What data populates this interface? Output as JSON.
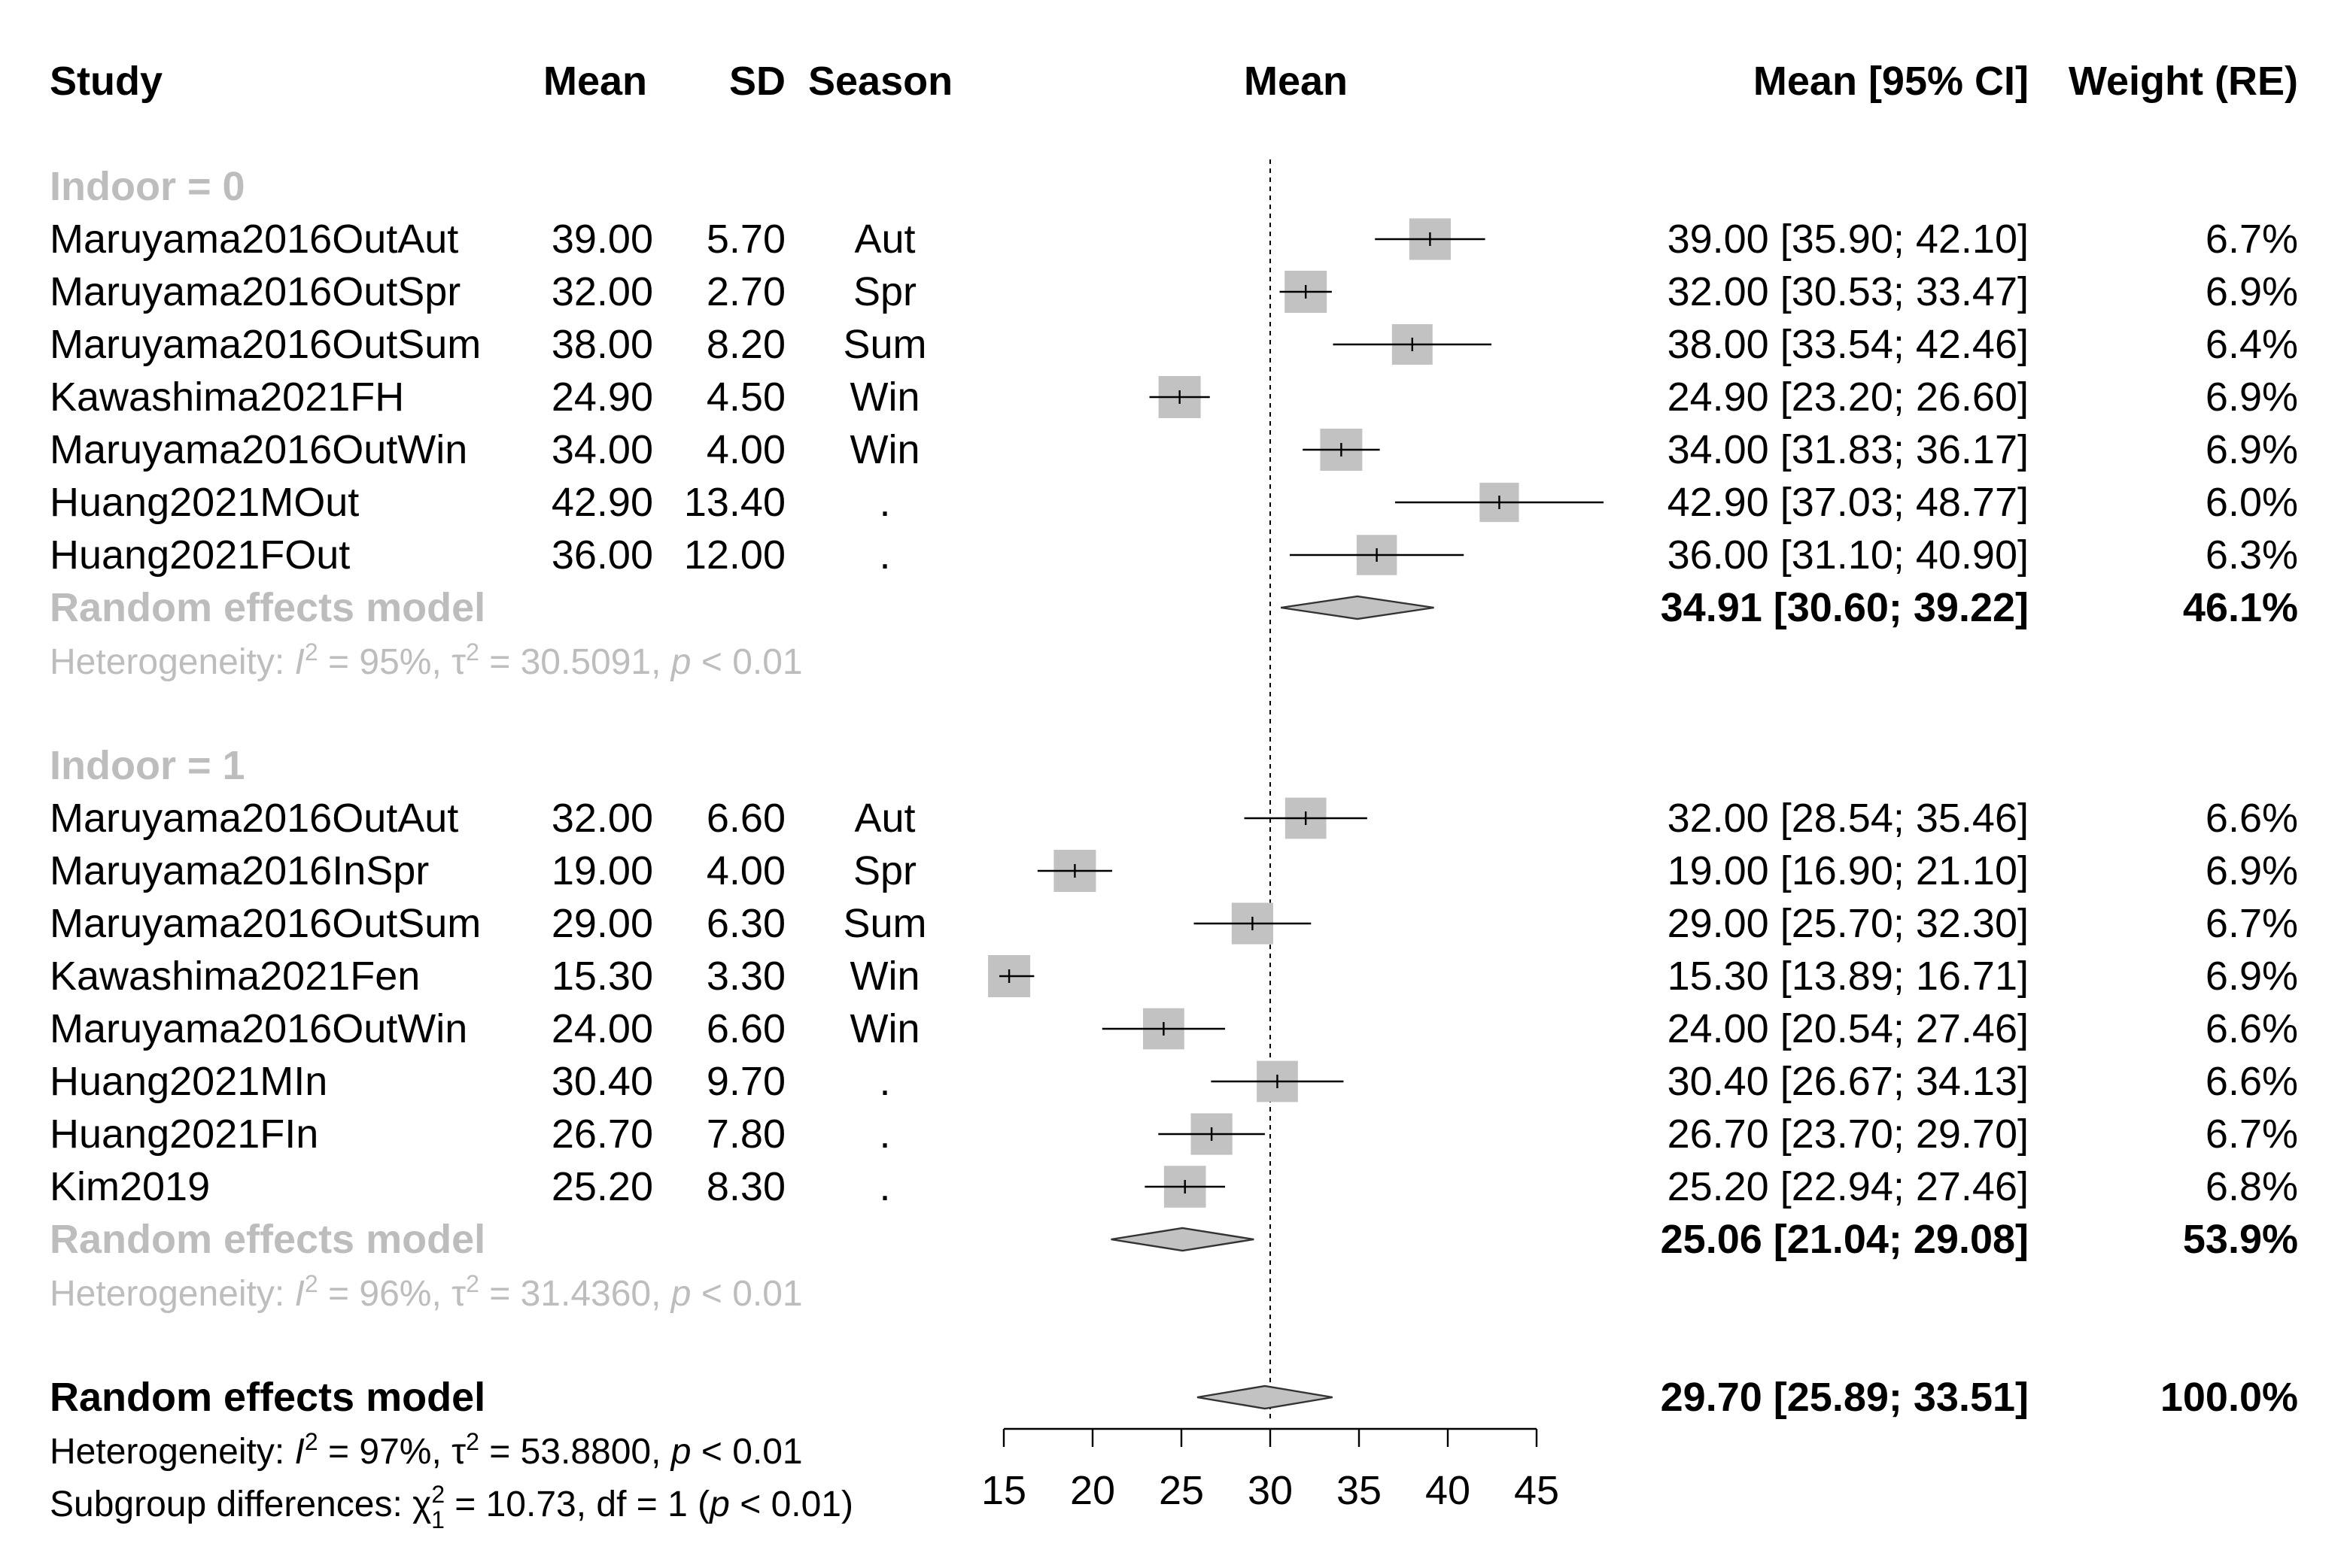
{
  "chart_data": {
    "type": "forest",
    "headers": {
      "study": "Study",
      "mean": "Mean",
      "sd": "SD",
      "season": "Season",
      "plot": "Mean",
      "ci": "Mean [95% CI]",
      "weight": "Weight (RE)"
    },
    "reference_line": 30,
    "xlim": [
      15,
      45
    ],
    "xticks": [
      "15",
      "20",
      "25",
      "30",
      "35",
      "40",
      "45"
    ],
    "groups": [
      {
        "label": "Indoor = 0",
        "studies": [
          {
            "study": "Maruyama2016OutAut",
            "mean": "39.00",
            "sd": "5.70",
            "season": "Aut",
            "ci_text": "39.00 [35.90; 42.10]",
            "weight": "6.7%",
            "est": 39.0,
            "lower": 35.9,
            "upper": 42.1,
            "w": 6.7
          },
          {
            "study": "Maruyama2016OutSpr",
            "mean": "32.00",
            "sd": "2.70",
            "season": "Spr",
            "ci_text": "32.00 [30.53; 33.47]",
            "weight": "6.9%",
            "est": 32.0,
            "lower": 30.53,
            "upper": 33.47,
            "w": 6.9
          },
          {
            "study": "Maruyama2016OutSum",
            "mean": "38.00",
            "sd": "8.20",
            "season": "Sum",
            "ci_text": "38.00 [33.54; 42.46]",
            "weight": "6.4%",
            "est": 38.0,
            "lower": 33.54,
            "upper": 42.46,
            "w": 6.4
          },
          {
            "study": "Kawashima2021FH",
            "mean": "24.90",
            "sd": "4.50",
            "season": "Win",
            "ci_text": "24.90 [23.20; 26.60]",
            "weight": "6.9%",
            "est": 24.9,
            "lower": 23.2,
            "upper": 26.6,
            "w": 6.9
          },
          {
            "study": "Maruyama2016OutWin",
            "mean": "34.00",
            "sd": "4.00",
            "season": "Win",
            "ci_text": "34.00 [31.83; 36.17]",
            "weight": "6.9%",
            "est": 34.0,
            "lower": 31.83,
            "upper": 36.17,
            "w": 6.9
          },
          {
            "study": "Huang2021MOut",
            "mean": "42.90",
            "sd": "13.40",
            "season": ".",
            "ci_text": "42.90 [37.03; 48.77]",
            "weight": "6.0%",
            "est": 42.9,
            "lower": 37.03,
            "upper": 48.77,
            "w": 6.0
          },
          {
            "study": "Huang2021FOut",
            "mean": "36.00",
            "sd": "12.00",
            "season": ".",
            "ci_text": "36.00 [31.10; 40.90]",
            "weight": "6.3%",
            "est": 36.0,
            "lower": 31.1,
            "upper": 40.9,
            "w": 6.3
          }
        ],
        "model": {
          "label": "Random effects model",
          "ci_text": "34.91 [30.60; 39.22]",
          "weight": "46.1%",
          "est": 34.91,
          "lower": 30.6,
          "upper": 39.22
        },
        "heterogeneity": {
          "prefix": "Heterogeneity: ",
          "I2": "95%",
          "tau2": "30.5091",
          "p": "0.01"
        }
      },
      {
        "label": "Indoor = 1",
        "studies": [
          {
            "study": "Maruyama2016OutAut",
            "mean": "32.00",
            "sd": "6.60",
            "season": "Aut",
            "ci_text": "32.00 [28.54; 35.46]",
            "weight": "6.6%",
            "est": 32.0,
            "lower": 28.54,
            "upper": 35.46,
            "w": 6.6
          },
          {
            "study": "Maruyama2016InSpr",
            "mean": "19.00",
            "sd": "4.00",
            "season": "Spr",
            "ci_text": "19.00 [16.90; 21.10]",
            "weight": "6.9%",
            "est": 19.0,
            "lower": 16.9,
            "upper": 21.1,
            "w": 6.9
          },
          {
            "study": "Maruyama2016OutSum",
            "mean": "29.00",
            "sd": "6.30",
            "season": "Sum",
            "ci_text": "29.00 [25.70; 32.30]",
            "weight": "6.7%",
            "est": 29.0,
            "lower": 25.7,
            "upper": 32.3,
            "w": 6.7
          },
          {
            "study": "Kawashima2021Fen",
            "mean": "15.30",
            "sd": "3.30",
            "season": "Win",
            "ci_text": "15.30 [13.89; 16.71]",
            "weight": "6.9%",
            "est": 15.3,
            "lower": 13.89,
            "upper": 16.71,
            "w": 6.9
          },
          {
            "study": "Maruyama2016OutWin",
            "mean": "24.00",
            "sd": "6.60",
            "season": "Win",
            "ci_text": "24.00 [20.54; 27.46]",
            "weight": "6.6%",
            "est": 24.0,
            "lower": 20.54,
            "upper": 27.46,
            "w": 6.6
          },
          {
            "study": "Huang2021MIn",
            "mean": "30.40",
            "sd": "9.70",
            "season": ".",
            "ci_text": "30.40 [26.67; 34.13]",
            "weight": "6.6%",
            "est": 30.4,
            "lower": 26.67,
            "upper": 34.13,
            "w": 6.6
          },
          {
            "study": "Huang2021FIn",
            "mean": "26.70",
            "sd": "7.80",
            "season": ".",
            "ci_text": "26.70 [23.70; 29.70]",
            "weight": "6.7%",
            "est": 26.7,
            "lower": 23.7,
            "upper": 29.7,
            "w": 6.7
          },
          {
            "study": "Kim2019",
            "mean": "25.20",
            "sd": "8.30",
            "season": ".",
            "ci_text": "25.20 [22.94; 27.46]",
            "weight": "6.8%",
            "est": 25.2,
            "lower": 22.94,
            "upper": 27.46,
            "w": 6.8
          }
        ],
        "model": {
          "label": "Random effects model",
          "ci_text": "25.06 [21.04; 29.08]",
          "weight": "53.9%",
          "est": 25.06,
          "lower": 21.04,
          "upper": 29.08
        },
        "heterogeneity": {
          "prefix": "Heterogeneity: ",
          "I2": "96%",
          "tau2": "31.4360",
          "p": "0.01"
        }
      }
    ],
    "overall": {
      "label": "Random effects model",
      "ci_text": "29.70 [25.89; 33.51]",
      "weight": "100.0%",
      "est": 29.7,
      "lower": 25.89,
      "upper": 33.51,
      "heterogeneity": {
        "prefix": "Heterogeneity: ",
        "I2": "97%",
        "tau2": "53.8800",
        "p": "0.01"
      },
      "subgroup": {
        "prefix": "Subgroup differences: ",
        "chi2": "10.73",
        "df_text": ", df = 1 (",
        "p": "0.01"
      }
    }
  }
}
